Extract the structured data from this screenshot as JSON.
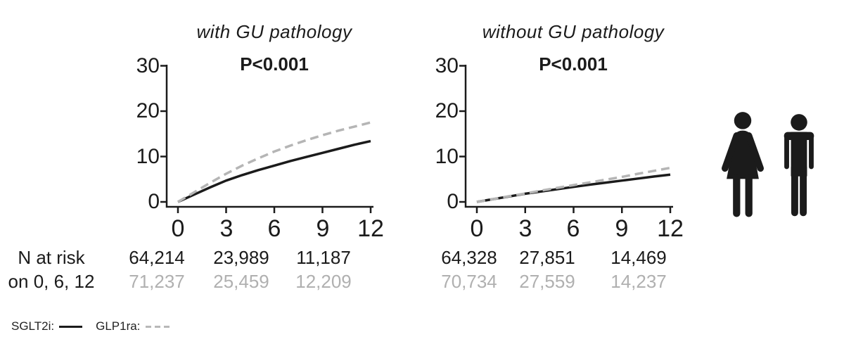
{
  "figure": {
    "legend": {
      "sglt2i_label": "SGLT2i:",
      "glp1ra_label": "GLP1ra:"
    },
    "risk_table": {
      "row_label_1": "N at risk",
      "row_label_2": "on 0, 6, 12"
    },
    "icons": {
      "left": "woman-icon",
      "right": "man-icon"
    },
    "colors": {
      "sglt2i_line": "#1b1b1b",
      "glp1ra_line": "#b5b5b5",
      "gray_text": "#b0b0b0",
      "text": "#1b1b1b"
    }
  },
  "chart_data": [
    {
      "type": "line",
      "title": "with GU pathology",
      "annotation": "P<0.001",
      "xlabel": "",
      "ylabel": "",
      "xlim": [
        0,
        12
      ],
      "ylim": [
        0,
        30
      ],
      "xticks": [
        "0",
        "3",
        "6",
        "9",
        "12"
      ],
      "yticks": [
        "0",
        "10",
        "20",
        "30"
      ],
      "x": [
        0,
        1,
        2,
        3,
        4,
        5,
        6,
        7,
        8,
        9,
        10,
        11,
        12
      ],
      "series": [
        {
          "name": "SGLT2i",
          "style": "solid",
          "color": "#1b1b1b",
          "values": [
            0,
            1.6,
            3.2,
            4.7,
            5.9,
            7.0,
            8.0,
            9.0,
            9.9,
            10.8,
            11.7,
            12.6,
            13.4
          ]
        },
        {
          "name": "GLP1ra",
          "style": "dashed",
          "color": "#b5b5b5",
          "values": [
            0,
            2.1,
            4.2,
            6.2,
            8.0,
            9.6,
            11.1,
            12.4,
            13.6,
            14.7,
            15.7,
            16.6,
            17.5
          ]
        }
      ],
      "n_at_risk": {
        "times": [
          0,
          6,
          12
        ],
        "SGLT2i": [
          "64,214",
          "23,989",
          "11,187"
        ],
        "GLP1ra": [
          "71,237",
          "25,459",
          "12,209"
        ]
      }
    },
    {
      "type": "line",
      "title": "without GU pathology",
      "annotation": "P<0.001",
      "xlabel": "",
      "ylabel": "",
      "xlim": [
        0,
        12
      ],
      "ylim": [
        0,
        30
      ],
      "xticks": [
        "0",
        "3",
        "6",
        "9",
        "12"
      ],
      "yticks": [
        "0",
        "10",
        "20",
        "30"
      ],
      "x": [
        0,
        1,
        2,
        3,
        4,
        5,
        6,
        7,
        8,
        9,
        10,
        11,
        12
      ],
      "series": [
        {
          "name": "SGLT2i",
          "style": "solid",
          "color": "#1b1b1b",
          "values": [
            0,
            0.6,
            1.2,
            1.8,
            2.3,
            2.8,
            3.3,
            3.8,
            4.25,
            4.7,
            5.15,
            5.6,
            6.0
          ]
        },
        {
          "name": "GLP1ra",
          "style": "dashed",
          "color": "#b5b5b5",
          "values": [
            0,
            0.6,
            1.25,
            1.85,
            2.5,
            3.1,
            3.7,
            4.3,
            4.9,
            5.5,
            6.2,
            6.85,
            7.5
          ]
        }
      ],
      "n_at_risk": {
        "times": [
          0,
          6,
          12
        ],
        "SGLT2i": [
          "64,328",
          "27,851",
          "14,469"
        ],
        "GLP1ra": [
          "70,734",
          "27,559",
          "14,237"
        ]
      }
    }
  ]
}
